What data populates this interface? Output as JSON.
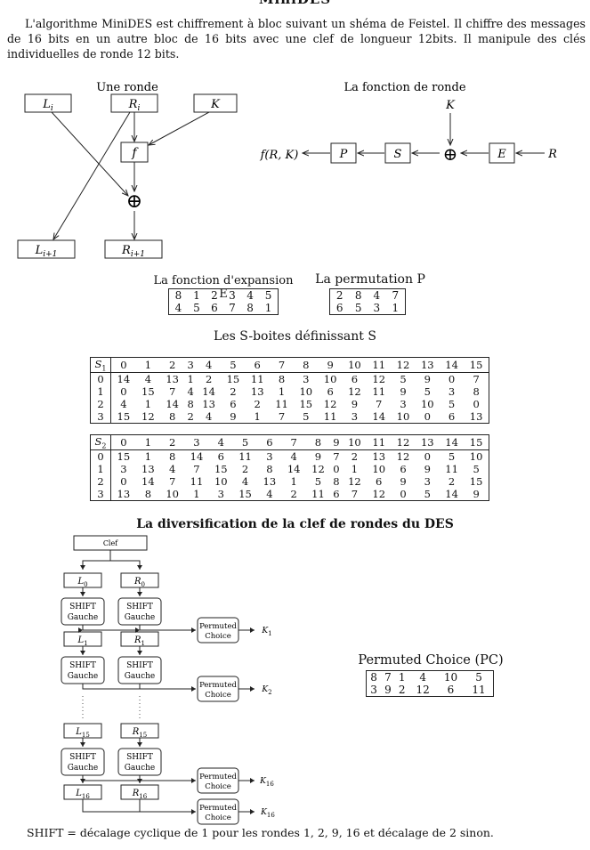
{
  "title": "MiniDES",
  "intro": "L'algorithme MiniDES est chiffrement à bloc suivant un shéma de Feistel. Il chiffre des messages de 16 bits en un autre bloc de 16 bits avec une clef de longueur 12bits. Il manipule des clés individuelles de ronde 12 bits.",
  "feistel": {
    "heading": "Une ronde",
    "li": "L",
    "li_sub": "i",
    "ri": "R",
    "ri_sub": "i",
    "k": "K",
    "f": "f",
    "xor": "⊕",
    "li1": "L",
    "li1_sub": "i+1",
    "ri1": "R",
    "ri1_sub": "i+1"
  },
  "round_function": {
    "heading": "La fonction de ronde",
    "output": "f(R, K)",
    "p": "P",
    "s": "S",
    "e": "E",
    "k": "K",
    "r": "R",
    "xor": "⊕"
  },
  "expansion": {
    "caption": "La fonction d'expansion E",
    "rows": [
      [
        "8",
        "1",
        "2",
        "3",
        "4",
        "5"
      ],
      [
        "4",
        "5",
        "6",
        "7",
        "8",
        "1"
      ]
    ]
  },
  "permutation": {
    "caption": "La permutation P",
    "rows": [
      [
        "2",
        "8",
        "4",
        "7"
      ],
      [
        "6",
        "5",
        "3",
        "1"
      ]
    ]
  },
  "sboxes": {
    "caption": "Les S-boites définissant S",
    "header": [
      "0",
      "1",
      "2",
      "3",
      "4",
      "5",
      "6",
      "7",
      "8",
      "9",
      "10",
      "11",
      "12",
      "13",
      "14",
      "15"
    ],
    "boxes": [
      {
        "name": "S",
        "sub": "1",
        "rows": [
          [
            "0",
            "14",
            "4",
            "13",
            "1",
            "2",
            "15",
            "11",
            "8",
            "3",
            "10",
            "6",
            "12",
            "5",
            "9",
            "0",
            "7"
          ],
          [
            "1",
            "0",
            "15",
            "7",
            "4",
            "14",
            "2",
            "13",
            "1",
            "10",
            "6",
            "12",
            "11",
            "9",
            "5",
            "3",
            "8"
          ],
          [
            "2",
            "4",
            "1",
            "14",
            "8",
            "13",
            "6",
            "2",
            "11",
            "15",
            "12",
            "9",
            "7",
            "3",
            "10",
            "5",
            "0"
          ],
          [
            "3",
            "15",
            "12",
            "8",
            "2",
            "4",
            "9",
            "1",
            "7",
            "5",
            "11",
            "3",
            "14",
            "10",
            "0",
            "6",
            "13"
          ]
        ]
      },
      {
        "name": "S",
        "sub": "2",
        "rows": [
          [
            "0",
            "15",
            "1",
            "8",
            "14",
            "6",
            "11",
            "3",
            "4",
            "9",
            "7",
            "2",
            "13",
            "12",
            "0",
            "5",
            "10"
          ],
          [
            "1",
            "3",
            "13",
            "4",
            "7",
            "15",
            "2",
            "8",
            "14",
            "12",
            "0",
            "1",
            "10",
            "6",
            "9",
            "11",
            "5"
          ],
          [
            "2",
            "0",
            "14",
            "7",
            "11",
            "10",
            "4",
            "13",
            "1",
            "5",
            "8",
            "12",
            "6",
            "9",
            "3",
            "2",
            "15"
          ],
          [
            "3",
            "13",
            "8",
            "10",
            "1",
            "3",
            "15",
            "4",
            "2",
            "11",
            "6",
            "7",
            "12",
            "0",
            "5",
            "14",
            "9"
          ]
        ]
      }
    ]
  },
  "key_schedule": {
    "heading": "La diversification de la clef de rondes du DES",
    "clef": "Clef",
    "shift": "SHIFT",
    "gauche": "Gauche",
    "pc": "Permuted",
    "pc2": "Choice",
    "stages": [
      {
        "l": "L",
        "ls": "0",
        "r": "R",
        "rs": "0",
        "k": "K",
        "ks": "1"
      },
      {
        "l": "L",
        "ls": "1",
        "r": "R",
        "rs": "1",
        "k": "K",
        "ks": "2"
      },
      {
        "l": "L",
        "ls": "15",
        "r": "R",
        "rs": "15",
        "k": "K",
        "ks": "16"
      },
      {
        "l": "L",
        "ls": "16",
        "r": "R",
        "rs": "16"
      }
    ]
  },
  "pc_table": {
    "caption": "Permuted Choice (PC)",
    "rows": [
      [
        "8",
        "7",
        "1",
        "4",
        "10",
        "5"
      ],
      [
        "3",
        "9",
        "2",
        "12",
        "6",
        "11"
      ]
    ]
  },
  "footer": "SHIFT = décalage cyclique de 1 pour les rondes 1, 2, 9, 16 et décalage de 2 sinon."
}
